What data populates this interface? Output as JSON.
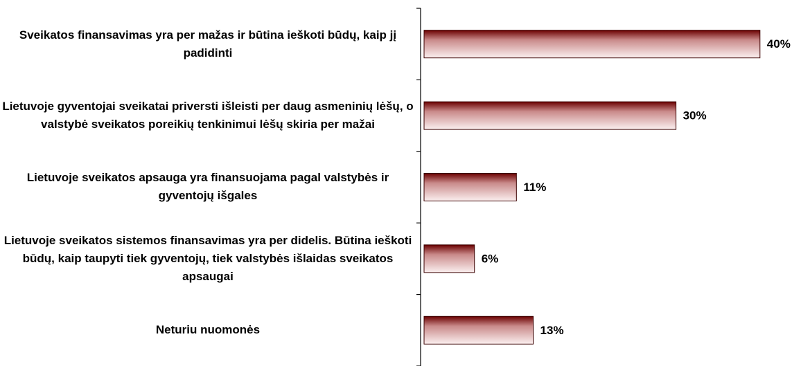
{
  "chart_data": {
    "type": "bar",
    "orientation": "horizontal",
    "categories": [
      "Sveikatos finansavimas yra per mažas ir būtina ieškoti būdų, kaip jį padidinti",
      "Lietuvoje gyventojai sveikatai priversti išleisti per daug asmeninių lėšų, o valstybė sveikatos poreikių tenkinimui lėšų skiria per mažai",
      "Lietuvoje sveikatos apsauga yra finansuojama pagal valstybės ir gyventojų išgales",
      "Lietuvoje sveikatos sistemos finansavimas yra per didelis. Būtina ieškoti būdų, kaip taupyti tiek gyventojų, tiek valstybės išlaidas sveikatos apsaugai",
      "Neturiu nuomonės"
    ],
    "values": [
      40,
      30,
      11,
      6,
      13
    ],
    "value_labels": [
      "40%",
      "30%",
      "11%",
      "6%",
      "13%"
    ],
    "color": "#6b0000"
  }
}
